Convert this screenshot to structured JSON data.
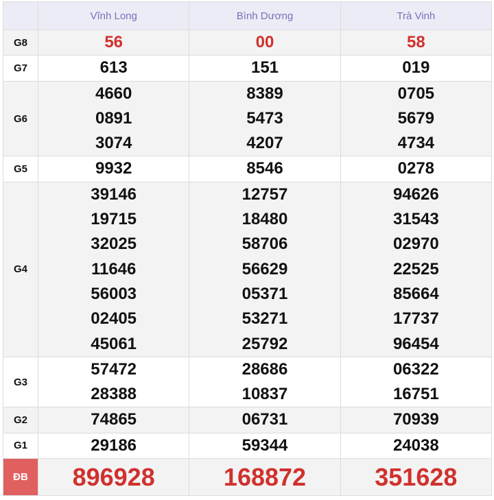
{
  "provinces": [
    "Vĩnh Long",
    "Bình Dương",
    "Trà Vinh"
  ],
  "prizes": [
    {
      "label": "G8",
      "values": [
        [
          "56"
        ],
        [
          "00"
        ],
        [
          "58"
        ]
      ]
    },
    {
      "label": "G7",
      "values": [
        [
          "613"
        ],
        [
          "151"
        ],
        [
          "019"
        ]
      ]
    },
    {
      "label": "G6",
      "values": [
        [
          "4660",
          "0891",
          "3074"
        ],
        [
          "8389",
          "5473",
          "4207"
        ],
        [
          "0705",
          "5679",
          "4734"
        ]
      ]
    },
    {
      "label": "G5",
      "values": [
        [
          "9932"
        ],
        [
          "8546"
        ],
        [
          "0278"
        ]
      ]
    },
    {
      "label": "G4",
      "values": [
        [
          "39146",
          "19715",
          "32025",
          "11646",
          "56003",
          "02405",
          "45061"
        ],
        [
          "12757",
          "18480",
          "58706",
          "56629",
          "05371",
          "53271",
          "25792"
        ],
        [
          "94626",
          "31543",
          "02970",
          "22525",
          "85664",
          "17737",
          "96454"
        ]
      ]
    },
    {
      "label": "G3",
      "values": [
        [
          "57472",
          "28388"
        ],
        [
          "28686",
          "10837"
        ],
        [
          "06322",
          "16751"
        ]
      ]
    },
    {
      "label": "G2",
      "values": [
        [
          "74865"
        ],
        [
          "06731"
        ],
        [
          "70939"
        ]
      ]
    },
    {
      "label": "G1",
      "values": [
        [
          "29186"
        ],
        [
          "59344"
        ],
        [
          "24038"
        ]
      ]
    },
    {
      "label": "ĐB",
      "values": [
        [
          "896928"
        ],
        [
          "168872"
        ],
        [
          "351628"
        ]
      ]
    }
  ],
  "colors": {
    "header_text": "#7a6fb8",
    "highlight": "#d0312d",
    "db_label_bg": "#e06060"
  }
}
